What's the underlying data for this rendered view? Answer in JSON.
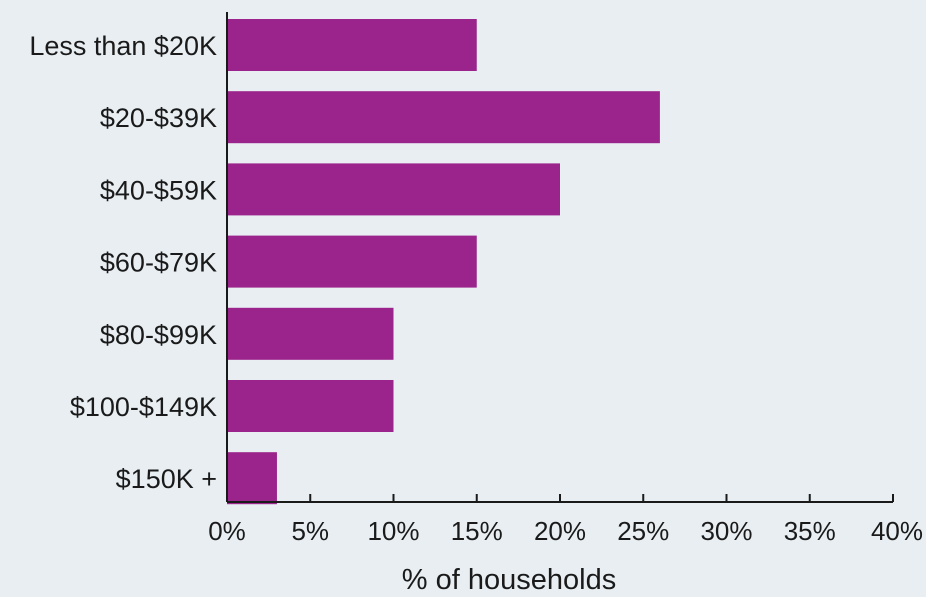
{
  "chart_data": {
    "type": "bar",
    "orientation": "horizontal",
    "categories": [
      "Less than $20K",
      "$20-$39K",
      "$40-$59K",
      "$60-$79K",
      "$80-$99K",
      "$100-$149K",
      "$150K +"
    ],
    "values": [
      15,
      26,
      20,
      15,
      10,
      10,
      3
    ],
    "xlabel": "% of households",
    "xlim": [
      0,
      40
    ],
    "xticks": [
      0,
      5,
      10,
      15,
      20,
      25,
      30,
      35,
      40
    ],
    "xtick_labels": [
      "0%",
      "5%",
      "10%",
      "15%",
      "20%",
      "25%",
      "30%",
      "35%",
      "40%"
    ],
    "grid": false,
    "bar_color": "#9b238c",
    "background_color": "#e8eef2"
  }
}
